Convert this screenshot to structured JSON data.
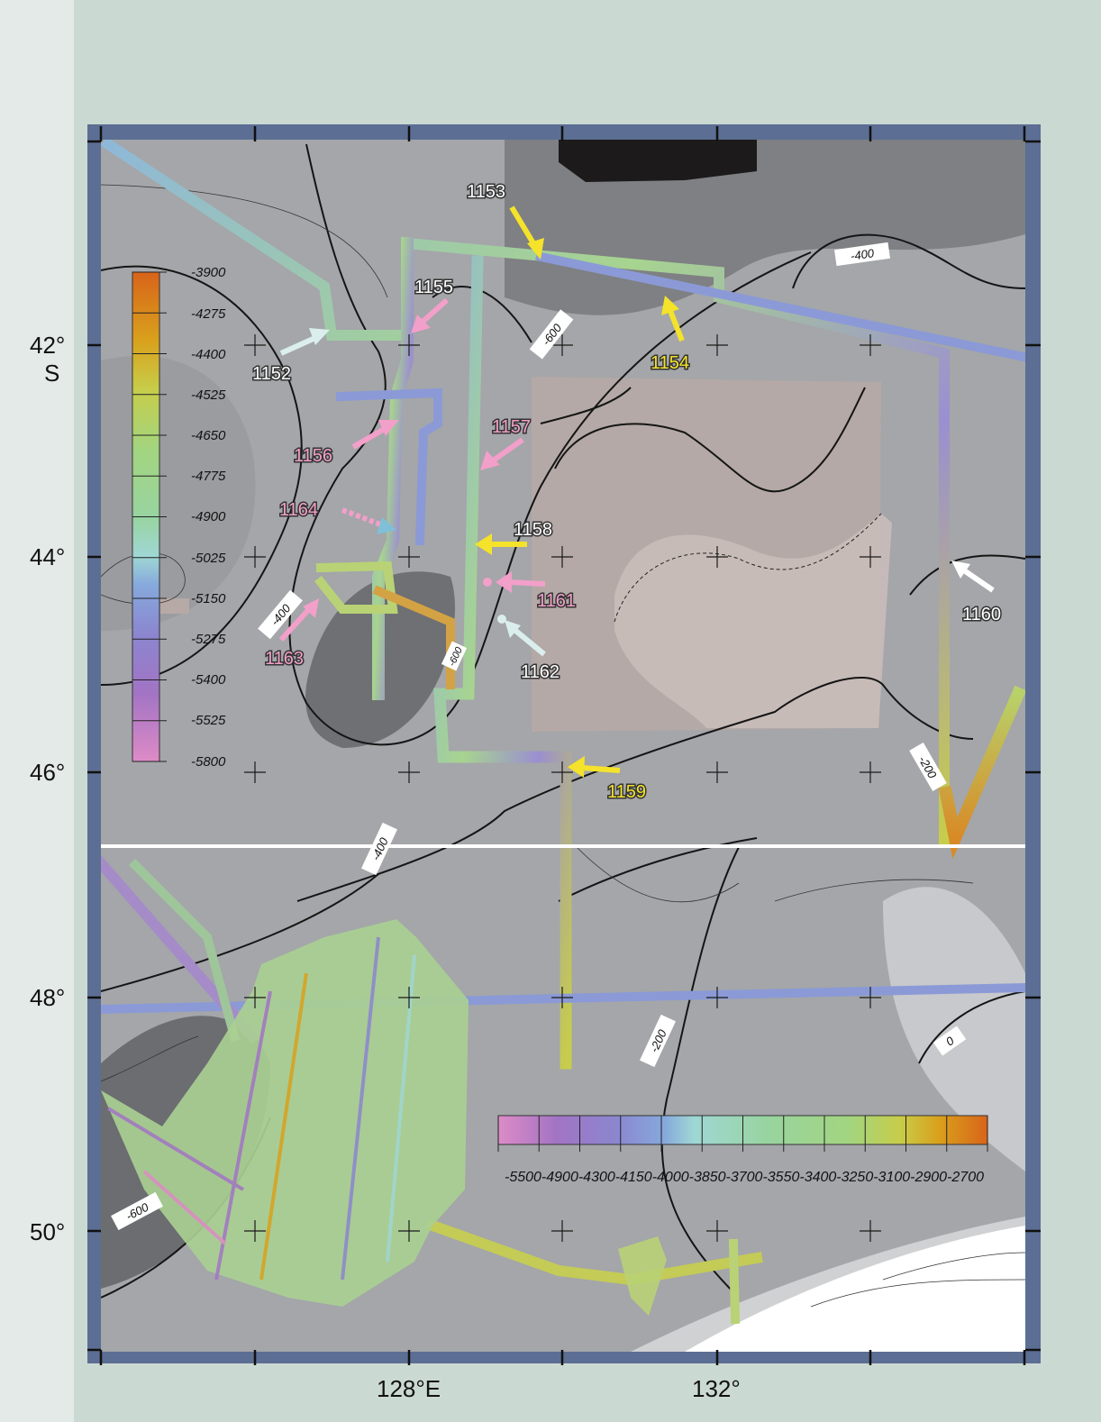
{
  "map": {
    "lat_labels": [
      "42°",
      "S",
      "44°",
      "46°",
      "48°",
      "50°"
    ],
    "lon_labels": [
      "128°E",
      "132°"
    ],
    "site_labels": [
      "1152",
      "1153",
      "1154",
      "1155",
      "1156",
      "1157",
      "1158",
      "1159",
      "1160",
      "1161",
      "1162",
      "1163",
      "1164"
    ],
    "contour_labels": [
      "-400",
      "-600",
      "-400",
      "-600",
      "-400",
      "-200",
      "-200",
      "0",
      "-600"
    ],
    "vertical_scale": [
      "-3900",
      "-4275",
      "-4400",
      "-4525",
      "-4650",
      "-4775",
      "-4900",
      "-5025",
      "-5150",
      "-5275",
      "-5400",
      "-5525",
      "-5800"
    ],
    "horizontal_scale": "-5500-4900-4300-4150-4000-3850-3700-3550-3400-3250-3100-2900-2700",
    "colors": {
      "frame": "#5c6e93",
      "scale_ramp_high": "#d96f1c",
      "scale_ramp_mid": "#9cd28c",
      "scale_ramp_low": "#d98bc6",
      "arrow_yellow": "#f4e32a",
      "arrow_pink": "#f29fc9",
      "arrow_white": "#ffffff",
      "arrow_pale": "#dbeeee",
      "separator_line": "#ffffff"
    },
    "icons": [
      "site-arrow-icon",
      "site-dot-icon",
      "graticule-cross-icon"
    ]
  }
}
